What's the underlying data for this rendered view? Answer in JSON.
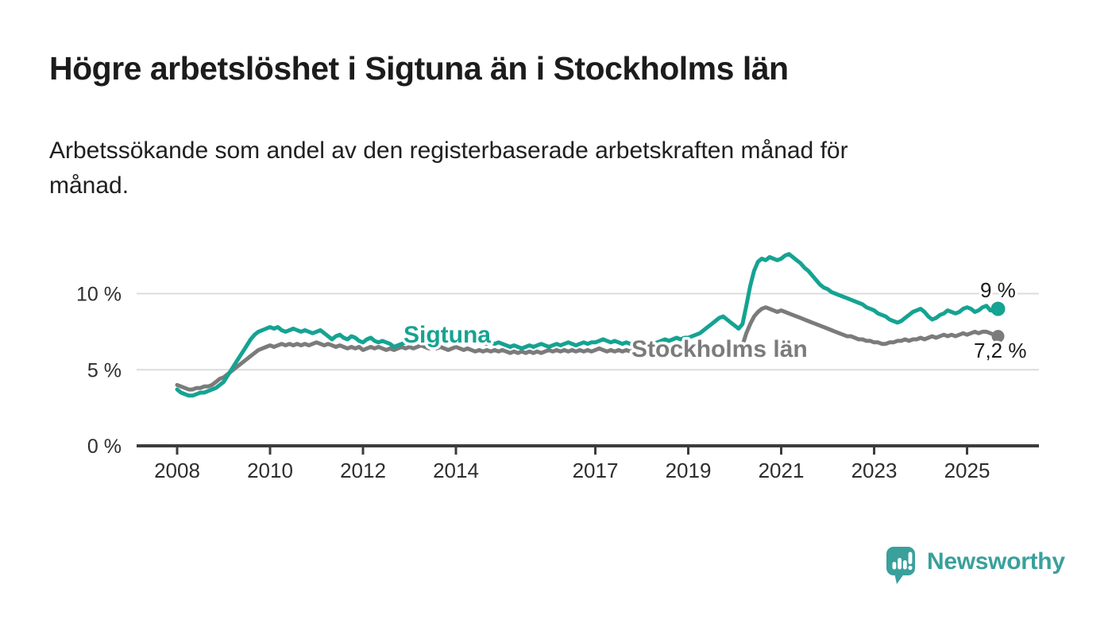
{
  "header": {
    "title": "Högre arbetslöshet i Sigtuna än i Stockholms län",
    "subtitle": "Arbetssökande som andel av den registerbaserade arbetskraften månad för månad."
  },
  "branding": {
    "name": "Newsworthy",
    "logo_icon": "speech-bubble-bar-chart-icon",
    "color": "#3aa09b"
  },
  "colors": {
    "sigtuna": "#15a392",
    "stockholm": "#7b7b7b",
    "grid": "#dcdcdc",
    "axis": "#3c3c3c",
    "tick_text": "#2e2e2e",
    "label_text": "#1a1a1a"
  },
  "chart_data": {
    "type": "line",
    "title": "Högre arbetslöshet i Sigtuna än i Stockholms län",
    "subtitle": "Arbetssökande som andel av den registerbaserade arbetskraften månad för månad.",
    "x_unit": "month",
    "x_range": [
      "2008-01",
      "2025-09"
    ],
    "x_ticks": [
      2008,
      2010,
      2012,
      2014,
      2017,
      2019,
      2021,
      2023,
      2025
    ],
    "y_ticks": [
      {
        "value": 0,
        "label": "0 %"
      },
      {
        "value": 5,
        "label": "5 %"
      },
      {
        "value": 10,
        "label": "10 %"
      }
    ],
    "ylim": [
      0,
      13.5
    ],
    "grid": "horizontal",
    "legend": "inline-labels",
    "series": [
      {
        "id": "sigtuna",
        "name": "Sigtuna",
        "color": "#15a392",
        "end_label": "9 %",
        "end_value": 9.0,
        "values": [
          3.7,
          3.5,
          3.4,
          3.3,
          3.3,
          3.4,
          3.5,
          3.5,
          3.6,
          3.7,
          3.8,
          4.0,
          4.2,
          4.6,
          5.0,
          5.4,
          5.8,
          6.2,
          6.6,
          7.0,
          7.3,
          7.5,
          7.6,
          7.7,
          7.8,
          7.7,
          7.8,
          7.6,
          7.5,
          7.6,
          7.7,
          7.6,
          7.5,
          7.6,
          7.5,
          7.4,
          7.5,
          7.6,
          7.4,
          7.2,
          7.0,
          7.2,
          7.3,
          7.1,
          7.0,
          7.2,
          7.1,
          6.9,
          6.8,
          7.0,
          7.1,
          6.9,
          6.8,
          6.9,
          6.8,
          6.7,
          6.5,
          6.6,
          6.7,
          6.8,
          6.9,
          7.0,
          6.9,
          7.0,
          7.1,
          7.0,
          7.1,
          7.2,
          7.1,
          7.2,
          7.1,
          7.0,
          7.1,
          7.0,
          6.9,
          7.0,
          6.9,
          6.8,
          6.9,
          6.8,
          6.7,
          6.8,
          6.7,
          6.8,
          6.7,
          6.6,
          6.5,
          6.6,
          6.5,
          6.4,
          6.5,
          6.6,
          6.5,
          6.6,
          6.7,
          6.6,
          6.5,
          6.6,
          6.7,
          6.6,
          6.7,
          6.8,
          6.7,
          6.6,
          6.7,
          6.8,
          6.7,
          6.8,
          6.8,
          6.9,
          7.0,
          6.9,
          6.8,
          6.9,
          6.8,
          6.7,
          6.8,
          6.7,
          6.8,
          6.9,
          6.8,
          6.7,
          6.8,
          6.7,
          6.8,
          6.9,
          7.0,
          6.9,
          7.0,
          7.1,
          7.0,
          7.1,
          7.1,
          7.2,
          7.3,
          7.4,
          7.6,
          7.8,
          8.0,
          8.2,
          8.4,
          8.5,
          8.3,
          8.1,
          7.9,
          7.7,
          8.0,
          9.2,
          10.5,
          11.5,
          12.1,
          12.3,
          12.2,
          12.4,
          12.3,
          12.2,
          12.3,
          12.5,
          12.6,
          12.4,
          12.2,
          12.0,
          11.7,
          11.5,
          11.2,
          10.9,
          10.6,
          10.4,
          10.3,
          10.1,
          10.0,
          9.9,
          9.8,
          9.7,
          9.6,
          9.5,
          9.4,
          9.3,
          9.1,
          9.0,
          8.9,
          8.7,
          8.6,
          8.5,
          8.3,
          8.2,
          8.1,
          8.2,
          8.4,
          8.6,
          8.8,
          8.9,
          9.0,
          8.8,
          8.5,
          8.3,
          8.4,
          8.6,
          8.7,
          8.9,
          8.8,
          8.7,
          8.8,
          9.0,
          9.1,
          9.0,
          8.8,
          8.9,
          9.1,
          9.2,
          8.9,
          8.9,
          9.0
        ]
      },
      {
        "id": "stockholms-lan",
        "name": "Stockholms län",
        "color": "#7b7b7b",
        "end_label": "7,2 %",
        "end_value": 7.2,
        "values": [
          4.0,
          3.9,
          3.8,
          3.7,
          3.7,
          3.8,
          3.8,
          3.9,
          3.9,
          4.0,
          4.2,
          4.4,
          4.5,
          4.7,
          4.9,
          5.1,
          5.3,
          5.5,
          5.7,
          5.9,
          6.1,
          6.3,
          6.4,
          6.5,
          6.6,
          6.5,
          6.6,
          6.7,
          6.6,
          6.7,
          6.6,
          6.7,
          6.6,
          6.7,
          6.6,
          6.7,
          6.8,
          6.7,
          6.6,
          6.7,
          6.6,
          6.5,
          6.6,
          6.5,
          6.4,
          6.5,
          6.4,
          6.5,
          6.3,
          6.4,
          6.5,
          6.4,
          6.5,
          6.4,
          6.3,
          6.4,
          6.3,
          6.4,
          6.5,
          6.4,
          6.5,
          6.4,
          6.5,
          6.6,
          6.5,
          6.4,
          6.5,
          6.4,
          6.5,
          6.4,
          6.3,
          6.4,
          6.5,
          6.4,
          6.3,
          6.4,
          6.3,
          6.2,
          6.3,
          6.2,
          6.3,
          6.2,
          6.3,
          6.2,
          6.3,
          6.2,
          6.1,
          6.2,
          6.1,
          6.2,
          6.1,
          6.2,
          6.1,
          6.2,
          6.1,
          6.2,
          6.3,
          6.2,
          6.3,
          6.2,
          6.3,
          6.2,
          6.3,
          6.2,
          6.3,
          6.2,
          6.3,
          6.2,
          6.3,
          6.4,
          6.3,
          6.2,
          6.3,
          6.2,
          6.3,
          6.2,
          6.3,
          6.2,
          6.3,
          6.2,
          6.1,
          6.2,
          6.1,
          6.2,
          6.1,
          6.0,
          6.1,
          6.2,
          6.1,
          6.2,
          6.3,
          6.2,
          6.3,
          6.2,
          6.3,
          6.4,
          6.3,
          6.4,
          6.5,
          6.4,
          6.5,
          6.4,
          6.3,
          6.4,
          6.5,
          6.4,
          6.6,
          7.4,
          8.0,
          8.5,
          8.8,
          9.0,
          9.1,
          9.0,
          8.9,
          8.8,
          8.9,
          8.8,
          8.7,
          8.6,
          8.5,
          8.4,
          8.3,
          8.2,
          8.1,
          8.0,
          7.9,
          7.8,
          7.7,
          7.6,
          7.5,
          7.4,
          7.3,
          7.2,
          7.2,
          7.1,
          7.0,
          7.0,
          6.9,
          6.9,
          6.8,
          6.8,
          6.7,
          6.7,
          6.8,
          6.8,
          6.9,
          6.9,
          7.0,
          6.9,
          7.0,
          7.0,
          7.1,
          7.0,
          7.1,
          7.2,
          7.1,
          7.2,
          7.3,
          7.2,
          7.3,
          7.2,
          7.3,
          7.4,
          7.3,
          7.4,
          7.5,
          7.4,
          7.5,
          7.5,
          7.4,
          7.3,
          7.2
        ]
      }
    ]
  }
}
